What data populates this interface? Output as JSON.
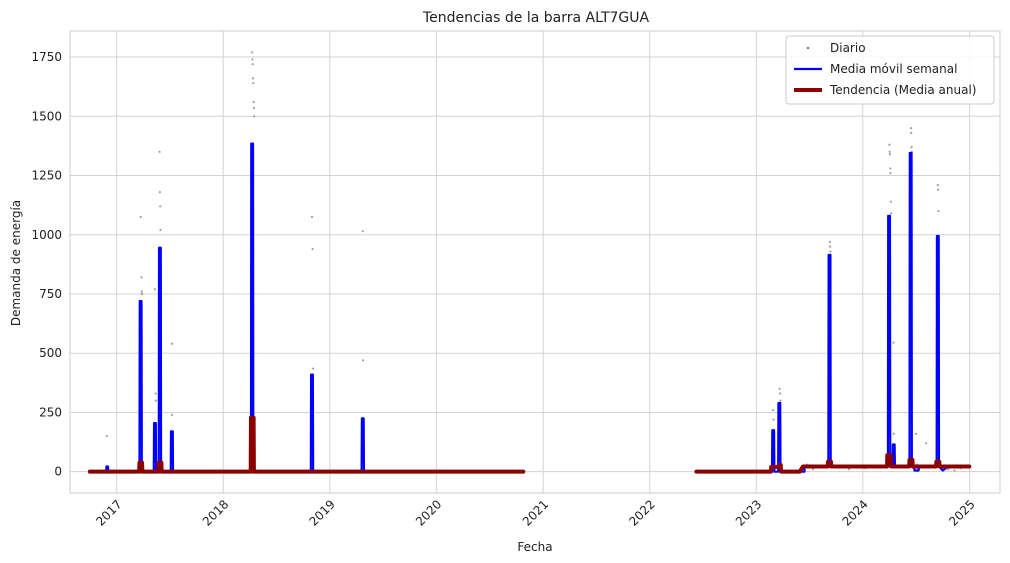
{
  "chart_data": {
    "type": "line",
    "title": "Tendencias de la barra ALT7GUA",
    "xlabel": "Fecha",
    "ylabel": "Demanda de energía",
    "xlim": [
      "2016-07-25",
      "2025-04-15"
    ],
    "ylim": [
      -90,
      1860
    ],
    "x_ticks": [
      {
        "date": "2017-01-01",
        "label": "2017"
      },
      {
        "date": "2018-01-01",
        "label": "2018"
      },
      {
        "date": "2019-01-01",
        "label": "2019"
      },
      {
        "date": "2020-01-01",
        "label": "2020"
      },
      {
        "date": "2021-01-01",
        "label": "2021"
      },
      {
        "date": "2022-01-01",
        "label": "2022"
      },
      {
        "date": "2023-01-01",
        "label": "2023"
      },
      {
        "date": "2024-01-01",
        "label": "2024"
      },
      {
        "date": "2025-01-01",
        "label": "2025"
      }
    ],
    "y_ticks": [
      0,
      250,
      500,
      750,
      1000,
      1250,
      1500,
      1750
    ],
    "grid": true,
    "legend_position": "top-right",
    "legend": [
      {
        "label": "Diario",
        "color": "#808080",
        "style": "dots"
      },
      {
        "label": "Media móvil semanal",
        "color": "#0000ff",
        "style": "line"
      },
      {
        "label": "Tendencia (Media anual)",
        "color": "#8b0000",
        "style": "thick-line"
      }
    ],
    "series": [
      {
        "name": "Diario",
        "color": "#808080",
        "points": [
          [
            "2016-11-28",
            150
          ],
          [
            "2016-11-28",
            20
          ],
          [
            "2017-03-24",
            1075
          ],
          [
            "2017-03-27",
            820
          ],
          [
            "2017-03-28",
            760
          ],
          [
            "2017-03-29",
            750
          ],
          [
            "2017-05-12",
            770
          ],
          [
            "2017-05-14",
            330
          ],
          [
            "2017-05-15",
            300
          ],
          [
            "2017-05-28",
            1350
          ],
          [
            "2017-05-29",
            1180
          ],
          [
            "2017-05-30",
            1120
          ],
          [
            "2017-05-31",
            1020
          ],
          [
            "2017-06-01",
            410
          ],
          [
            "2017-07-10",
            540
          ],
          [
            "2017-07-09",
            240
          ],
          [
            "2018-04-10",
            1770
          ],
          [
            "2018-04-11",
            1740
          ],
          [
            "2018-04-12",
            1720
          ],
          [
            "2018-04-13",
            1660
          ],
          [
            "2018-04-14",
            1640
          ],
          [
            "2018-04-15",
            1560
          ],
          [
            "2018-04-16",
            1535
          ],
          [
            "2018-04-17",
            1500
          ],
          [
            "2018-11-01",
            1075
          ],
          [
            "2018-11-03",
            940
          ],
          [
            "2018-11-05",
            435
          ],
          [
            "2019-04-24",
            1015
          ],
          [
            "2019-04-25",
            470
          ],
          [
            "2023-02-28",
            260
          ],
          [
            "2023-03-01",
            220
          ],
          [
            "2023-03-22",
            350
          ],
          [
            "2023-03-24",
            330
          ],
          [
            "2023-03-25",
            300
          ],
          [
            "2023-06-25",
            30
          ],
          [
            "2023-07-15",
            10
          ],
          [
            "2023-09-10",
            970
          ],
          [
            "2023-09-11",
            950
          ],
          [
            "2023-09-12",
            930
          ],
          [
            "2023-11-15",
            10
          ],
          [
            "2024-01-10",
            15
          ],
          [
            "2024-04-01",
            1380
          ],
          [
            "2024-04-02",
            1350
          ],
          [
            "2024-04-03",
            1340
          ],
          [
            "2024-04-04",
            1280
          ],
          [
            "2024-04-05",
            1260
          ],
          [
            "2024-04-06",
            1140
          ],
          [
            "2024-04-07",
            1090
          ],
          [
            "2024-04-15",
            545
          ],
          [
            "2024-04-16",
            160
          ],
          [
            "2024-06-14",
            1450
          ],
          [
            "2024-06-15",
            1430
          ],
          [
            "2024-06-16",
            1370
          ],
          [
            "2024-06-17",
            1350
          ],
          [
            "2024-07-01",
            160
          ],
          [
            "2024-07-05",
            30
          ],
          [
            "2024-08-05",
            120
          ],
          [
            "2024-09-14",
            1210
          ],
          [
            "2024-09-15",
            1190
          ],
          [
            "2024-09-16",
            1100
          ],
          [
            "2024-10-20",
            10
          ],
          [
            "2024-11-10",
            5
          ],
          [
            "2024-12-01",
            15
          ]
        ]
      },
      {
        "name": "Media móvil semanal",
        "color": "#0000ff",
        "points": [
          [
            "2016-10-01",
            0
          ],
          [
            "2016-11-26",
            0
          ],
          [
            "2016-11-27",
            22
          ],
          [
            "2016-12-02",
            22
          ],
          [
            "2016-12-03",
            0
          ],
          [
            "2017-03-20",
            0
          ],
          [
            "2017-03-21",
            720
          ],
          [
            "2017-03-27",
            720
          ],
          [
            "2017-03-28",
            0
          ],
          [
            "2017-05-08",
            0
          ],
          [
            "2017-05-09",
            205
          ],
          [
            "2017-05-15",
            205
          ],
          [
            "2017-05-16",
            0
          ],
          [
            "2017-05-25",
            0
          ],
          [
            "2017-05-26",
            945
          ],
          [
            "2017-06-01",
            945
          ],
          [
            "2017-06-02",
            0
          ],
          [
            "2017-07-05",
            0
          ],
          [
            "2017-07-06",
            170
          ],
          [
            "2017-07-12",
            170
          ],
          [
            "2017-07-13",
            0
          ],
          [
            "2018-04-06",
            0
          ],
          [
            "2018-04-07",
            1385
          ],
          [
            "2018-04-13",
            1385
          ],
          [
            "2018-04-14",
            0
          ],
          [
            "2018-10-28",
            0
          ],
          [
            "2018-10-29",
            410
          ],
          [
            "2018-11-04",
            410
          ],
          [
            "2018-11-05",
            0
          ],
          [
            "2019-04-20",
            0
          ],
          [
            "2019-04-21",
            225
          ],
          [
            "2019-04-27",
            225
          ],
          [
            "2019-04-28",
            0
          ],
          [
            "2020-10-25",
            0
          ]
        ]
      },
      {
        "name": "Media móvil semanal",
        "color": "#0000ff",
        "points": [
          [
            "2022-06-10",
            0
          ],
          [
            "2023-02-24",
            0
          ],
          [
            "2023-02-25",
            175
          ],
          [
            "2023-03-03",
            175
          ],
          [
            "2023-03-04",
            0
          ],
          [
            "2023-03-17",
            0
          ],
          [
            "2023-03-18",
            290
          ],
          [
            "2023-03-24",
            290
          ],
          [
            "2023-03-25",
            0
          ],
          [
            "2023-06-15",
            0
          ],
          [
            "2023-06-16",
            22
          ],
          [
            "2023-09-05",
            22
          ],
          [
            "2023-09-06",
            915
          ],
          [
            "2023-09-12",
            915
          ],
          [
            "2023-09-13",
            22
          ],
          [
            "2024-03-27",
            22
          ],
          [
            "2024-03-28",
            1080
          ],
          [
            "2024-04-03",
            1080
          ],
          [
            "2024-04-04",
            22
          ],
          [
            "2024-04-12",
            22
          ],
          [
            "2024-04-13",
            115
          ],
          [
            "2024-04-19",
            115
          ],
          [
            "2024-04-20",
            22
          ],
          [
            "2024-06-09",
            22
          ],
          [
            "2024-06-10",
            1345
          ],
          [
            "2024-06-16",
            1345
          ],
          [
            "2024-06-17",
            22
          ],
          [
            "2024-06-25",
            22
          ],
          [
            "2024-06-26",
            5
          ],
          [
            "2024-07-10",
            5
          ],
          [
            "2024-07-11",
            22
          ],
          [
            "2024-09-10",
            22
          ],
          [
            "2024-09-11",
            995
          ],
          [
            "2024-09-17",
            995
          ],
          [
            "2024-09-18",
            22
          ],
          [
            "2024-10-01",
            5
          ],
          [
            "2024-10-20",
            22
          ],
          [
            "2024-12-31",
            22
          ]
        ]
      },
      {
        "name": "Tendencia (Media anual)",
        "color": "#8b0000",
        "points": [
          [
            "2016-10-01",
            0
          ],
          [
            "2017-03-19",
            0
          ],
          [
            "2017-03-20",
            38
          ],
          [
            "2017-03-29",
            38
          ],
          [
            "2017-03-30",
            0
          ],
          [
            "2017-05-24",
            0
          ],
          [
            "2017-05-25",
            38
          ],
          [
            "2017-06-03",
            38
          ],
          [
            "2017-06-04",
            0
          ],
          [
            "2018-04-05",
            0
          ],
          [
            "2018-04-06",
            228
          ],
          [
            "2018-04-15",
            228
          ],
          [
            "2018-04-16",
            0
          ],
          [
            "2020-10-25",
            0
          ]
        ]
      },
      {
        "name": "Tendencia (Media anual)",
        "color": "#8b0000",
        "points": [
          [
            "2022-06-10",
            0
          ],
          [
            "2023-02-20",
            0
          ],
          [
            "2023-02-21",
            20
          ],
          [
            "2023-03-18",
            20
          ],
          [
            "2023-03-19",
            28
          ],
          [
            "2023-03-26",
            28
          ],
          [
            "2023-03-27",
            0
          ],
          [
            "2023-05-30",
            0
          ],
          [
            "2023-06-10",
            22
          ],
          [
            "2023-09-03",
            22
          ],
          [
            "2023-09-04",
            42
          ],
          [
            "2023-09-14",
            42
          ],
          [
            "2023-09-15",
            22
          ],
          [
            "2024-03-24",
            22
          ],
          [
            "2024-03-25",
            70
          ],
          [
            "2024-04-06",
            70
          ],
          [
            "2024-04-07",
            22
          ],
          [
            "2024-06-08",
            22
          ],
          [
            "2024-06-09",
            50
          ],
          [
            "2024-06-19",
            50
          ],
          [
            "2024-06-20",
            22
          ],
          [
            "2024-09-08",
            22
          ],
          [
            "2024-09-09",
            42
          ],
          [
            "2024-09-19",
            42
          ],
          [
            "2024-09-20",
            22
          ],
          [
            "2024-12-31",
            22
          ]
        ]
      }
    ]
  }
}
